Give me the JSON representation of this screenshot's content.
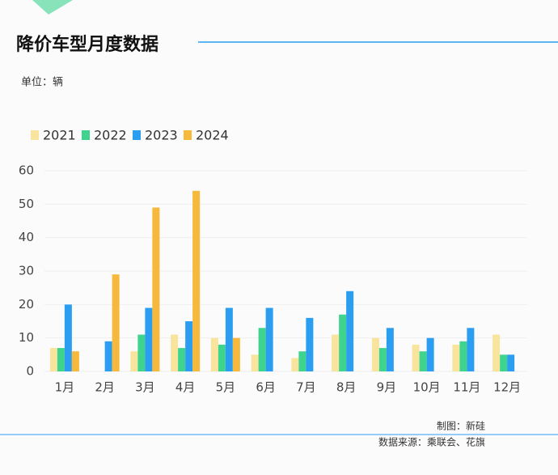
{
  "chart_data": {
    "type": "bar",
    "title": "降价车型月度数据",
    "unit": "单位：辆",
    "credit": "制图：新硅",
    "source": "数据来源：乘联会、花旗",
    "categories": [
      "1月",
      "2月",
      "3月",
      "4月",
      "5月",
      "6月",
      "7月",
      "8月",
      "9月",
      "10月",
      "11月",
      "12月"
    ],
    "series": [
      {
        "name": "2021",
        "color": "#f8e49c",
        "values": [
          7,
          0,
          6,
          11,
          10,
          5,
          4,
          11,
          10,
          8,
          8,
          11
        ]
      },
      {
        "name": "2022",
        "color": "#3ed48d",
        "values": [
          7,
          0,
          11,
          7,
          8,
          13,
          6,
          17,
          7,
          6,
          9,
          5
        ]
      },
      {
        "name": "2023",
        "color": "#2b9ef2",
        "values": [
          20,
          9,
          19,
          15,
          19,
          19,
          16,
          24,
          13,
          10,
          13,
          5
        ]
      },
      {
        "name": "2024",
        "color": "#f6b93c",
        "values": [
          6,
          29,
          49,
          54,
          10,
          null,
          null,
          null,
          null,
          null,
          null,
          null
        ]
      }
    ],
    "ylim": [
      0,
      60
    ],
    "yticks": [
      0,
      10,
      20,
      30,
      40,
      50,
      60
    ],
    "grid": true
  }
}
